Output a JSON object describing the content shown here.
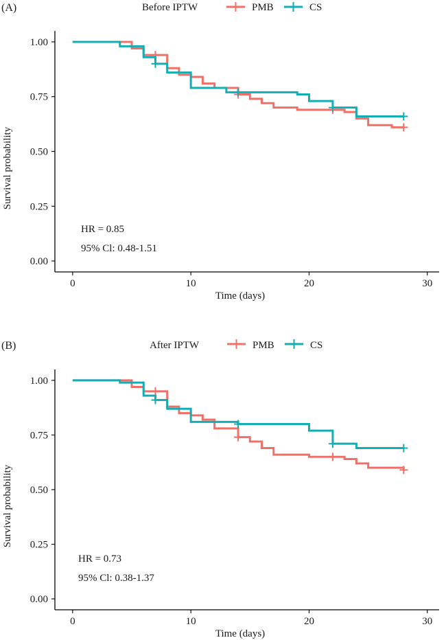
{
  "colors": {
    "pmb": "#F07068",
    "cs": "#13AEB3"
  },
  "chart_data": [
    {
      "type": "line",
      "panel_label": "(A)",
      "legend_title": "Before IPTW",
      "xlabel": "Time (days)",
      "ylabel": "Survival probability",
      "xlim": [
        -1.5,
        31
      ],
      "ylim": [
        -0.05,
        1.05
      ],
      "x_ticks": [
        0,
        10,
        20,
        30
      ],
      "y_ticks": [
        0.0,
        0.25,
        0.5,
        0.75,
        1.0
      ],
      "y_tick_labels": [
        "0.00",
        "0.25",
        "0.50",
        "0.75",
        "1.00"
      ],
      "annotations": {
        "hr": "HR = 0.85",
        "ci": "95% Cl: 0.48-1.51"
      },
      "series": [
        {
          "name": "PMB",
          "color_key": "pmb",
          "x": [
            0,
            4,
            5,
            6,
            7,
            8,
            9,
            10,
            11,
            12,
            13,
            14,
            15,
            16,
            17,
            19,
            22,
            23,
            24,
            25,
            27,
            28
          ],
          "y": [
            1.0,
            1.0,
            0.97,
            0.94,
            0.94,
            0.88,
            0.85,
            0.84,
            0.81,
            0.79,
            0.79,
            0.76,
            0.74,
            0.72,
            0.7,
            0.69,
            0.69,
            0.68,
            0.65,
            0.62,
            0.61,
            0.61
          ],
          "censor_x": [
            7,
            14,
            22,
            28
          ],
          "censor_y": [
            0.94,
            0.76,
            0.69,
            0.61
          ]
        },
        {
          "name": "CS",
          "color_key": "cs",
          "x": [
            0,
            4,
            6,
            7,
            8,
            10,
            13,
            14,
            19,
            20,
            22,
            24,
            28
          ],
          "y": [
            1.0,
            0.98,
            0.93,
            0.9,
            0.86,
            0.79,
            0.77,
            0.77,
            0.76,
            0.73,
            0.7,
            0.66,
            0.66
          ],
          "censor_x": [
            7,
            14,
            22,
            28
          ],
          "censor_y": [
            0.9,
            0.77,
            0.7,
            0.66
          ]
        }
      ]
    },
    {
      "type": "line",
      "panel_label": "(B)",
      "legend_title": "After IPTW",
      "xlabel": "Time (days)",
      "ylabel": "Survival probability",
      "xlim": [
        -1.5,
        31
      ],
      "ylim": [
        -0.05,
        1.05
      ],
      "x_ticks": [
        0,
        10,
        20,
        30
      ],
      "y_ticks": [
        0.0,
        0.25,
        0.5,
        0.75,
        1.0
      ],
      "y_tick_labels": [
        "0.00",
        "0.25",
        "0.50",
        "0.75",
        "1.00"
      ],
      "annotations": {
        "hr": "HR = 0.73",
        "ci": "95% Cl: 0.38-1.37"
      },
      "series": [
        {
          "name": "PMB",
          "color_key": "pmb",
          "x": [
            0,
            4,
            5,
            6,
            7,
            8,
            9,
            10,
            11,
            12,
            14,
            15,
            16,
            17,
            20,
            22,
            23,
            24,
            25,
            28
          ],
          "y": [
            1.0,
            1.0,
            0.97,
            0.95,
            0.95,
            0.88,
            0.85,
            0.84,
            0.82,
            0.78,
            0.74,
            0.72,
            0.69,
            0.66,
            0.65,
            0.65,
            0.64,
            0.62,
            0.6,
            0.59
          ],
          "censor_x": [
            7,
            14,
            22,
            28
          ],
          "censor_y": [
            0.95,
            0.74,
            0.65,
            0.59
          ]
        },
        {
          "name": "CS",
          "color_key": "cs",
          "x": [
            0,
            4,
            6,
            7,
            8,
            10,
            13,
            14,
            19,
            20,
            22,
            24,
            28
          ],
          "y": [
            1.0,
            0.99,
            0.93,
            0.91,
            0.87,
            0.81,
            0.81,
            0.8,
            0.8,
            0.77,
            0.71,
            0.69,
            0.69
          ],
          "censor_x": [
            7,
            14,
            22,
            28
          ],
          "censor_y": [
            0.91,
            0.8,
            0.71,
            0.69
          ]
        }
      ]
    }
  ]
}
